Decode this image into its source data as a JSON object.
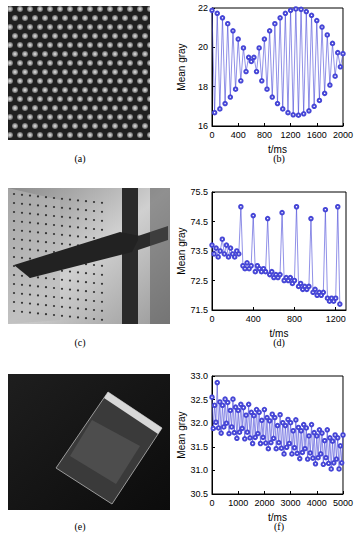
{
  "images": [
    {
      "label": "(a)"
    },
    {
      "label": "(c)"
    },
    {
      "label": "(e)"
    }
  ],
  "chart_data": [
    {
      "type": "line",
      "caption": "(b)",
      "x_label": "t/ms",
      "y_label": "Mean gray",
      "x": [
        0,
        40,
        80,
        120,
        160,
        200,
        240,
        280,
        320,
        360,
        400,
        440,
        480,
        520,
        560,
        600,
        640,
        680,
        720,
        760,
        800,
        840,
        880,
        920,
        960,
        1000,
        1040,
        1080,
        1120,
        1160,
        1200,
        1240,
        1280,
        1320,
        1360,
        1400,
        1440,
        1480,
        1520,
        1560,
        1600,
        1640,
        1680,
        1720,
        1760,
        1800,
        1840,
        1880,
        1920,
        1960,
        2000
      ],
      "series": [
        {
          "color": "#4646d6",
          "marker": "circle",
          "values": [
            21.88,
            16.68,
            21.73,
            16.87,
            21.5,
            17.14,
            21.2,
            17.47,
            20.84,
            17.87,
            20.42,
            18.3,
            19.97,
            18.77,
            19.49,
            19.28,
            19.49,
            18.77,
            19.97,
            18.3,
            20.42,
            17.87,
            20.84,
            17.47,
            21.2,
            17.14,
            21.5,
            16.87,
            21.73,
            16.68,
            21.88,
            16.57,
            21.95,
            16.55,
            21.93,
            16.62,
            21.82,
            16.77,
            21.63,
            17.0,
            21.36,
            17.3,
            21.03,
            17.66,
            20.63,
            18.08,
            20.2,
            18.53,
            19.73,
            19.01,
            19.68
          ]
        }
      ],
      "xlim": [
        0,
        2000
      ],
      "xticks": [
        0,
        400,
        800,
        1200,
        1600,
        2000
      ],
      "ylim": [
        16,
        22
      ],
      "yticks": [
        16,
        18,
        20,
        22
      ]
    },
    {
      "type": "line",
      "caption": "(d)",
      "x_label": "t/ms",
      "y_label": "Mean gray",
      "x": [
        0,
        20,
        40,
        60,
        80,
        100,
        120,
        140,
        160,
        180,
        200,
        220,
        240,
        260,
        280,
        300,
        320,
        340,
        360,
        380,
        400,
        420,
        440,
        460,
        480,
        500,
        520,
        540,
        560,
        580,
        600,
        620,
        640,
        660,
        680,
        700,
        720,
        740,
        760,
        780,
        800,
        820,
        840,
        860,
        880,
        900,
        920,
        940,
        960,
        980,
        1000,
        1020,
        1040,
        1060,
        1080,
        1100,
        1120,
        1140,
        1160,
        1180,
        1200,
        1220,
        1240
      ],
      "series": [
        {
          "color": "#4646d6",
          "marker": "circle",
          "values": [
            73.7,
            73.4,
            73.6,
            73.3,
            73.5,
            73.9,
            73.4,
            73.7,
            73.3,
            73.6,
            73.4,
            73.3,
            73.5,
            73.4,
            75.0,
            73.0,
            72.9,
            73.1,
            72.9,
            73.0,
            74.7,
            72.8,
            73.0,
            72.9,
            72.8,
            72.9,
            72.8,
            74.6,
            72.7,
            72.8,
            72.6,
            72.7,
            72.6,
            72.7,
            74.8,
            72.5,
            72.6,
            72.5,
            72.6,
            72.4,
            72.5,
            75.0,
            72.3,
            72.4,
            72.2,
            72.3,
            72.2,
            72.3,
            74.6,
            72.1,
            72.2,
            72.0,
            72.1,
            72.0,
            72.1,
            74.9,
            71.9,
            71.8,
            71.9,
            71.8,
            71.9,
            75.0,
            71.7
          ]
        }
      ],
      "xlim": [
        0,
        1300
      ],
      "xticks": [
        0,
        400,
        800,
        1200
      ],
      "ylim": [
        71.5,
        75.5
      ],
      "yticks": [
        71.5,
        72.5,
        73.5,
        74.5,
        75.5
      ]
    },
    {
      "type": "line",
      "caption": "(f)",
      "x_label": "t/ms",
      "y_label": "Mean gray",
      "x": [
        0,
        50,
        100,
        150,
        200,
        250,
        300,
        350,
        400,
        450,
        500,
        550,
        600,
        650,
        700,
        750,
        800,
        850,
        900,
        950,
        1000,
        1050,
        1100,
        1150,
        1200,
        1250,
        1300,
        1350,
        1400,
        1450,
        1500,
        1550,
        1600,
        1650,
        1700,
        1750,
        1800,
        1850,
        1900,
        1950,
        2000,
        2050,
        2100,
        2150,
        2200,
        2250,
        2300,
        2350,
        2400,
        2450,
        2500,
        2550,
        2600,
        2650,
        2700,
        2750,
        2800,
        2850,
        2900,
        2950,
        3000,
        3050,
        3100,
        3150,
        3200,
        3250,
        3300,
        3350,
        3400,
        3450,
        3500,
        3550,
        3600,
        3650,
        3700,
        3750,
        3800,
        3850,
        3900,
        3950,
        4000,
        4050,
        4100,
        4150,
        4200,
        4250,
        4300,
        4350,
        4400,
        4450,
        4500,
        4550,
        4600,
        4650,
        4700,
        4750,
        4800,
        4850,
        4900,
        4950,
        5000
      ],
      "series": [
        {
          "color": "#4646d6",
          "marker": "circle",
          "values": [
            32.55,
            31.89,
            32.38,
            32.02,
            32.86,
            31.9,
            32.45,
            31.79,
            32.38,
            31.92,
            32.51,
            32.0,
            32.44,
            31.78,
            32.27,
            31.92,
            32.51,
            31.8,
            32.34,
            31.68,
            32.27,
            31.81,
            32.4,
            31.89,
            32.33,
            31.67,
            32.17,
            31.81,
            32.4,
            31.69,
            32.23,
            31.57,
            32.16,
            31.7,
            32.29,
            31.78,
            32.23,
            31.57,
            32.06,
            31.7,
            32.29,
            31.58,
            32.12,
            31.46,
            32.05,
            31.59,
            32.19,
            31.68,
            32.12,
            31.46,
            31.95,
            31.59,
            32.18,
            31.47,
            32.01,
            31.35,
            31.95,
            31.49,
            32.08,
            31.57,
            32.01,
            31.35,
            31.84,
            31.48,
            32.07,
            31.36,
            31.91,
            31.25,
            31.84,
            31.38,
            31.97,
            31.46,
            31.9,
            31.24,
            31.73,
            31.37,
            31.97,
            31.26,
            31.8,
            31.14,
            31.73,
            31.27,
            31.86,
            31.35,
            31.79,
            31.13,
            31.63,
            31.27,
            31.86,
            31.15,
            31.69,
            31.03,
            31.62,
            31.16,
            31.75,
            31.24,
            31.69,
            31.03,
            31.52,
            31.16,
            31.75
          ]
        }
      ],
      "xlim": [
        0,
        5000
      ],
      "xticks": [
        0,
        1000,
        2000,
        3000,
        4000,
        5000
      ],
      "ylim": [
        30.5,
        33
      ],
      "yticks": [
        30.5,
        {
          "value": 31,
          "label": "31.0"
        },
        31.5,
        {
          "value": 32,
          "label": "32.0"
        },
        32.5,
        {
          "value": 33,
          "label": "33.0"
        }
      ]
    }
  ]
}
